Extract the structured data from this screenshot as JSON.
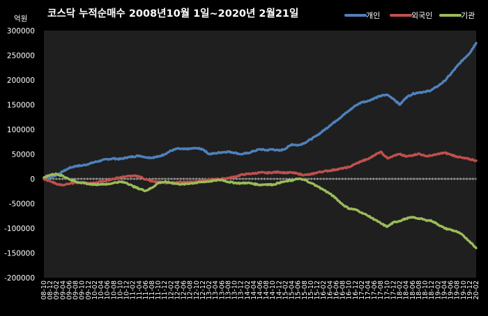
{
  "chart_data": {
    "type": "line",
    "title": "코스닥  누적순매수 2008년10월 1일~2020년 2월21일",
    "ylabel": "억원",
    "xlabel": "",
    "ylim": [
      -200000,
      300000
    ],
    "yticks": [
      300000,
      250000,
      200000,
      150000,
      100000,
      50000,
      0,
      -50000,
      -100000,
      -150000,
      -200000
    ],
    "grid": false,
    "legend": "top-right",
    "categories": [
      "08-10",
      "08-12",
      "09-02",
      "09-04",
      "09-06",
      "09-08",
      "09-10",
      "09-12",
      "10-02",
      "10-04",
      "10-06",
      "10-08",
      "10-10",
      "10-12",
      "11-02",
      "11-04",
      "11-06",
      "11-08",
      "11-10",
      "11-12",
      "12-02",
      "12-04",
      "12-06",
      "12-08",
      "12-10",
      "12-12",
      "13-02",
      "13-04",
      "13-06",
      "13-08",
      "13-10",
      "13-12",
      "14-02",
      "14-04",
      "14-06",
      "14-08",
      "14-10",
      "14-12",
      "15-02",
      "15-04",
      "15-06",
      "15-08",
      "15-10",
      "15-12",
      "16-02",
      "16-04",
      "16-06",
      "16-08",
      "16-10",
      "16-12",
      "17-02",
      "17-04",
      "17-06",
      "17-08",
      "17-10",
      "17-12",
      "18-02",
      "18-04",
      "18-06",
      "18-08",
      "18-10",
      "18-12",
      "19-02",
      "19-04",
      "19-06",
      "19-08",
      "19-10",
      "19-12",
      "20-02"
    ],
    "series": [
      {
        "name": "개인",
        "color": "#4f81bd",
        "values": [
          0,
          3000,
          8000,
          15000,
          22000,
          26000,
          27000,
          30000,
          34000,
          37000,
          40000,
          41000,
          40000,
          43000,
          45000,
          47000,
          44000,
          43000,
          45000,
          50000,
          57000,
          61000,
          60000,
          61000,
          62000,
          60000,
          50000,
          52000,
          54000,
          55000,
          53000,
          50000,
          52000,
          56000,
          60000,
          58000,
          60000,
          57000,
          61000,
          70000,
          68000,
          73000,
          80000,
          88000,
          98000,
          108000,
          118000,
          128000,
          138000,
          148000,
          155000,
          158000,
          163000,
          168000,
          170000,
          162000,
          150000,
          165000,
          172000,
          175000,
          176000,
          180000,
          188000,
          198000,
          212000,
          228000,
          242000,
          255000,
          275000
        ]
      },
      {
        "name": "외국인",
        "color": "#c0504d",
        "values": [
          0,
          -5000,
          -10000,
          -13000,
          -10000,
          -7000,
          -8000,
          -9000,
          -8000,
          -5000,
          -3000,
          0,
          3000,
          5000,
          6000,
          5000,
          -1000,
          -5000,
          -6000,
          -8000,
          -8000,
          -7000,
          -6000,
          -6000,
          -5000,
          -4000,
          -2000,
          -1000,
          0,
          2000,
          4000,
          8000,
          10000,
          11000,
          13000,
          12000,
          13000,
          14000,
          12000,
          13000,
          10000,
          8000,
          9000,
          13000,
          15000,
          17000,
          19000,
          21000,
          24000,
          30000,
          36000,
          40000,
          48000,
          55000,
          42000,
          47000,
          50000,
          45000,
          48000,
          51000,
          46000,
          47000,
          50000,
          53000,
          49000,
          45000,
          42000,
          40000,
          37000
        ]
      },
      {
        "name": "기관",
        "color": "#9bbb59",
        "values": [
          3000,
          8000,
          10000,
          6000,
          -1000,
          -5000,
          -8000,
          -10000,
          -12000,
          -10000,
          -11000,
          -8000,
          -6000,
          -8000,
          -15000,
          -20000,
          -24000,
          -18000,
          -8000,
          -6000,
          -8000,
          -10000,
          -11000,
          -9000,
          -8000,
          -6000,
          -5000,
          -3000,
          -2000,
          -6000,
          -8000,
          -9000,
          -8000,
          -10000,
          -12000,
          -11000,
          -12000,
          -8000,
          -5000,
          -3000,
          0,
          -2000,
          -8000,
          -15000,
          -22000,
          -30000,
          -40000,
          -52000,
          -60000,
          -62000,
          -68000,
          -75000,
          -82000,
          -90000,
          -97000,
          -88000,
          -85000,
          -80000,
          -78000,
          -80000,
          -83000,
          -85000,
          -92000,
          -100000,
          -103000,
          -107000,
          -115000,
          -127000,
          -140000
        ]
      }
    ]
  }
}
